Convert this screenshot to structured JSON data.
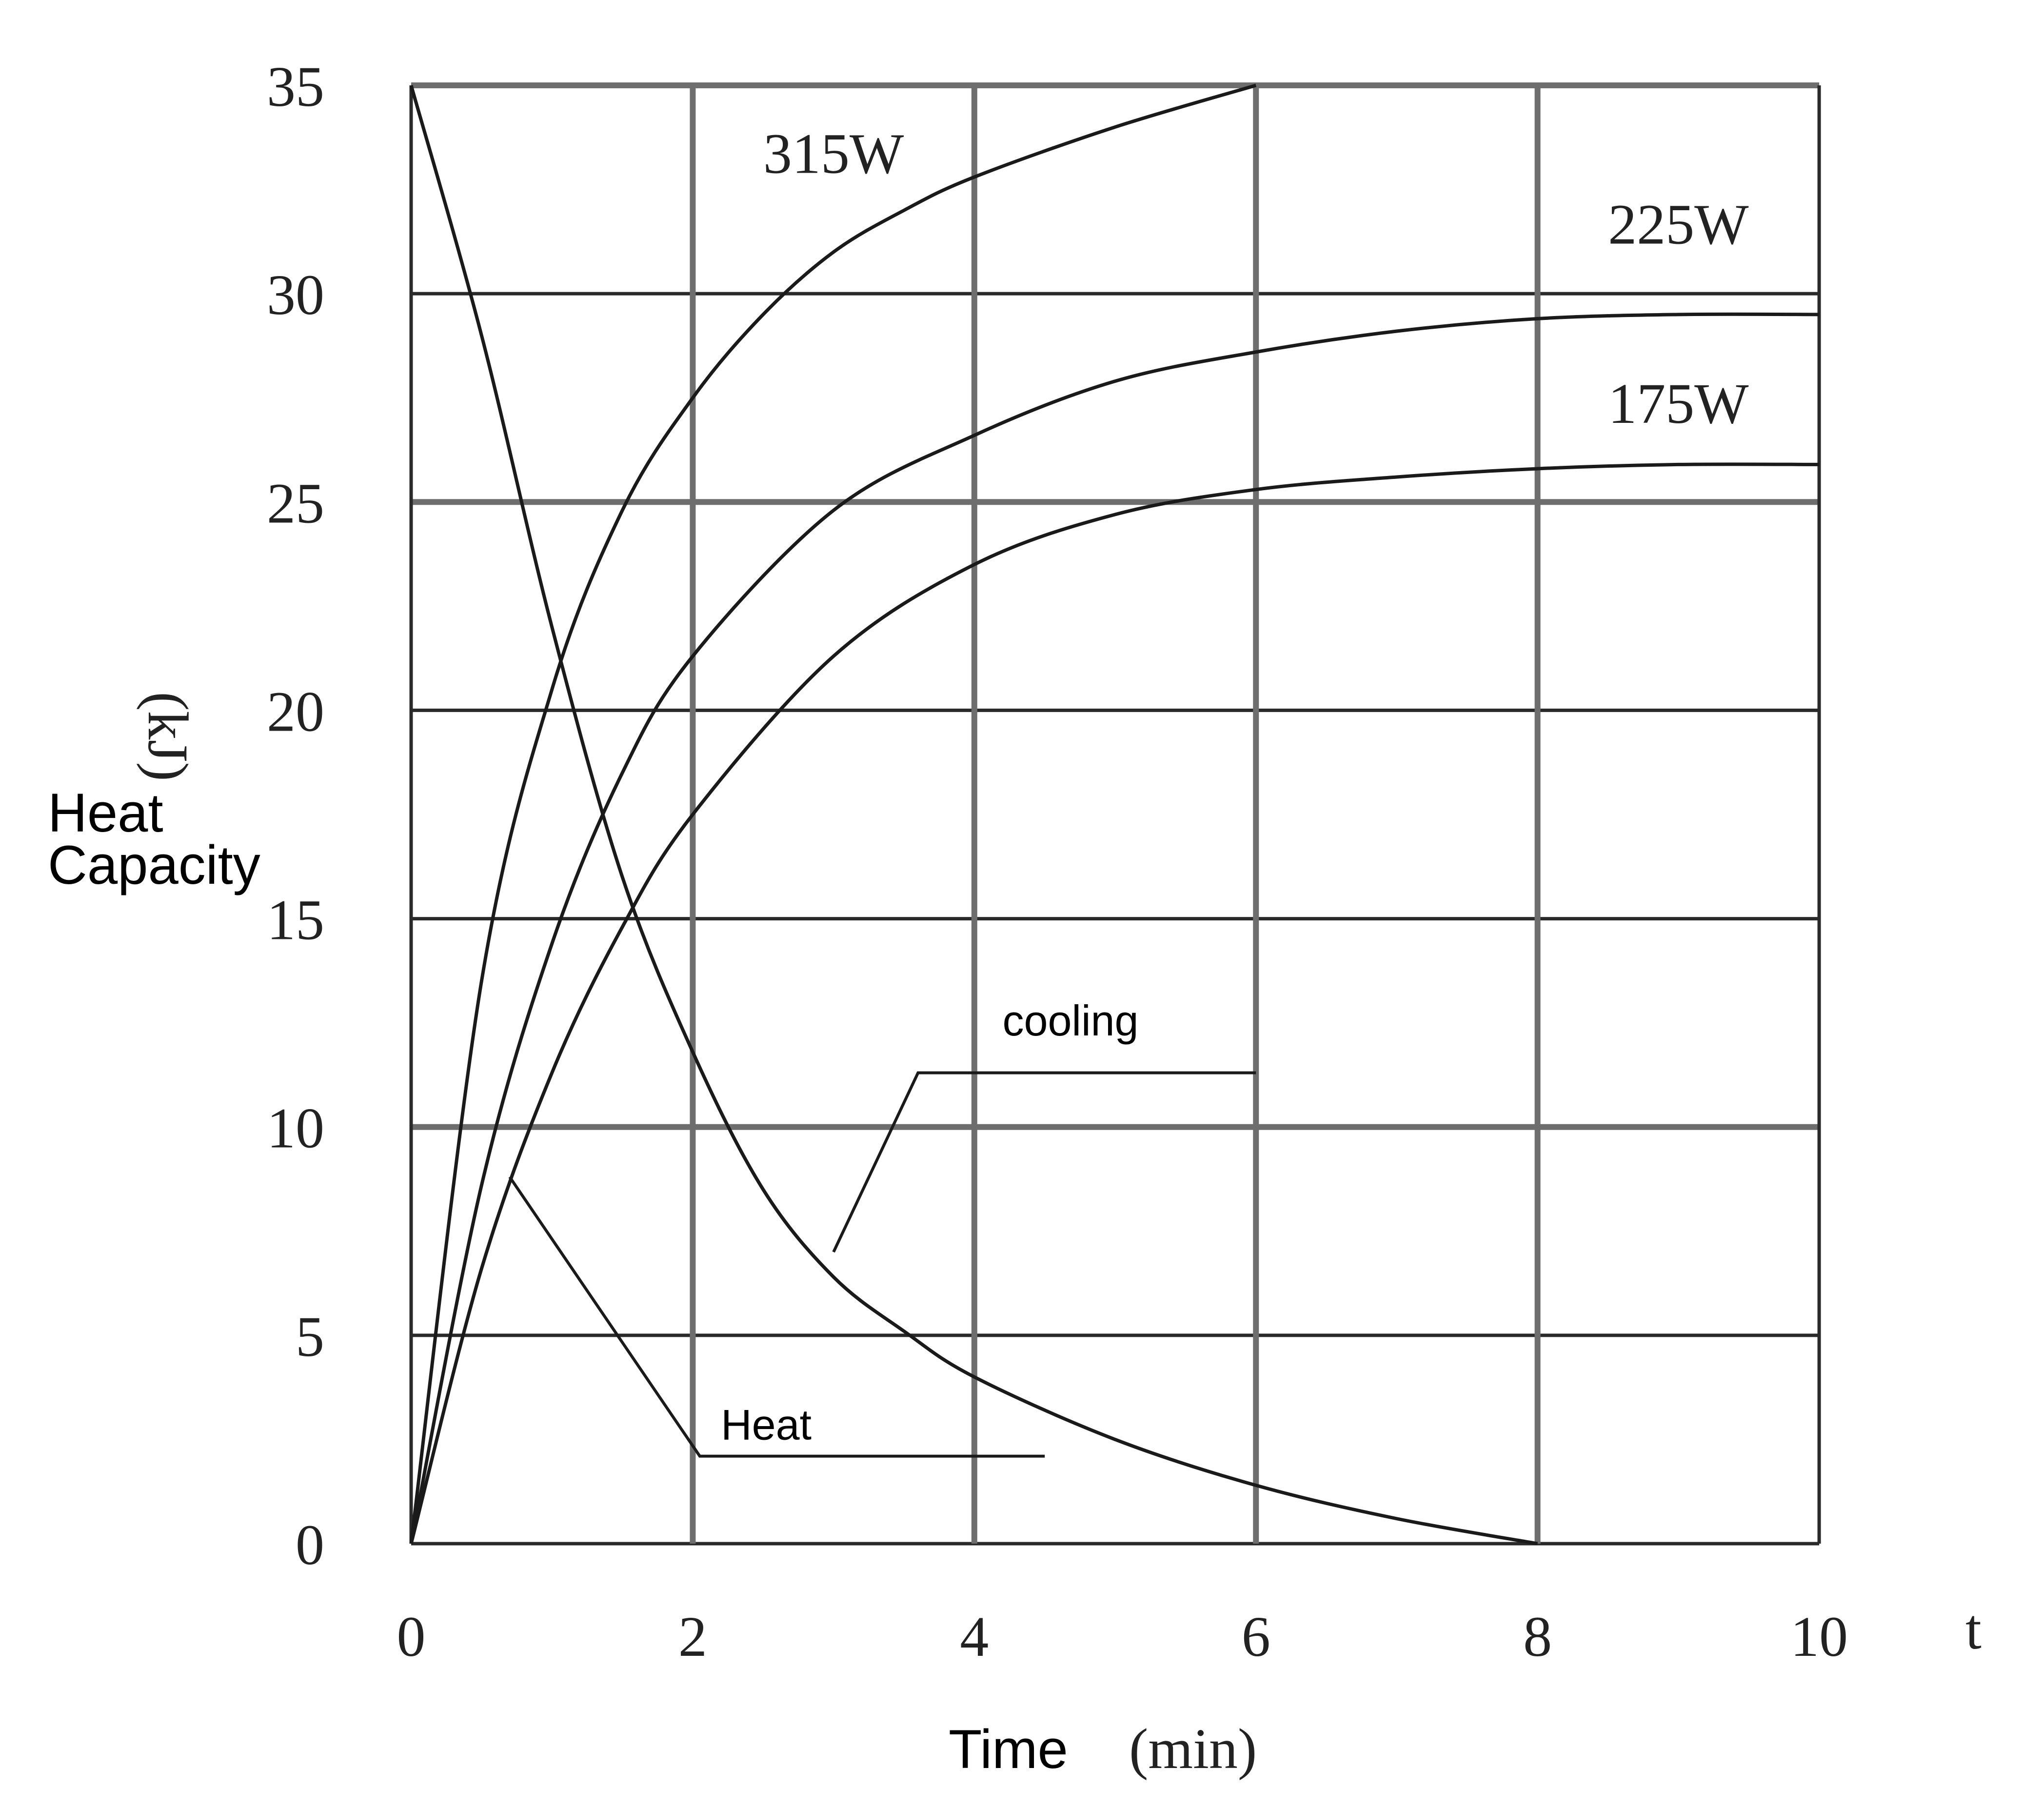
{
  "chart_data": {
    "type": "line",
    "title": "",
    "xlabel": "Time",
    "xunit": "(min)",
    "xaxis_symbol": "t",
    "ylabel_lines": [
      "Heat",
      "Capacity"
    ],
    "yunit": "(kJ)",
    "xlim": [
      0,
      10
    ],
    "ylim": [
      0,
      35
    ],
    "x_ticks": [
      "0",
      "2",
      "4",
      "6",
      "8",
      "10"
    ],
    "y_ticks": [
      "0",
      "5",
      "10",
      "15",
      "20",
      "25",
      "30",
      "35"
    ],
    "grid": true,
    "series": [
      {
        "name": "315W",
        "x": [
          0,
          0.5,
          1,
          1.5,
          2,
          2.5,
          3,
          3.5,
          4,
          5,
          6
        ],
        "y": [
          0,
          13.5,
          20.5,
          24.8,
          27.5,
          29.5,
          31,
          32,
          32.8,
          34,
          35
        ]
      },
      {
        "name": "225W",
        "x": [
          0,
          0.5,
          1,
          1.5,
          2,
          3,
          4,
          5,
          6,
          7,
          8,
          9,
          10
        ],
        "y": [
          0,
          8.6,
          14.4,
          18.5,
          21.3,
          24.8,
          26.6,
          27.9,
          28.6,
          29.1,
          29.4,
          29.5,
          29.5
        ]
      },
      {
        "name": "175W",
        "x": [
          0,
          0.5,
          1,
          1.5,
          2,
          3,
          4,
          5,
          6,
          7,
          8,
          9,
          10
        ],
        "y": [
          0,
          6.6,
          11.3,
          14.8,
          17.5,
          21.3,
          23.5,
          24.7,
          25.3,
          25.6,
          25.8,
          25.9,
          25.9
        ]
      },
      {
        "name": "cooling",
        "x": [
          0,
          0.5,
          1,
          1.5,
          2,
          2.5,
          3,
          3.5,
          4,
          5,
          6,
          7,
          8
        ],
        "y": [
          35,
          29,
          22,
          16,
          11.8,
          8.5,
          6.4,
          5.1,
          4.0,
          2.5,
          1.4,
          0.6,
          0
        ]
      }
    ],
    "annotations": [
      {
        "text": "315W",
        "x": 3.0,
        "y": 32.9
      },
      {
        "text": "225W",
        "x": 9.0,
        "y": 31.2
      },
      {
        "text": "175W",
        "x": 9.0,
        "y": 26.9
      },
      {
        "text": "cooling",
        "x": 4.2,
        "y": 12.2,
        "leader": [
          [
            3.0,
            7.0
          ],
          [
            3.6,
            11.3
          ],
          [
            6.0,
            11.3
          ]
        ]
      },
      {
        "text": "Heat",
        "x": 2.2,
        "y": 2.5,
        "leader": [
          [
            0.7,
            8.8
          ],
          [
            2.05,
            2.1
          ],
          [
            4.5,
            2.1
          ]
        ]
      }
    ]
  }
}
